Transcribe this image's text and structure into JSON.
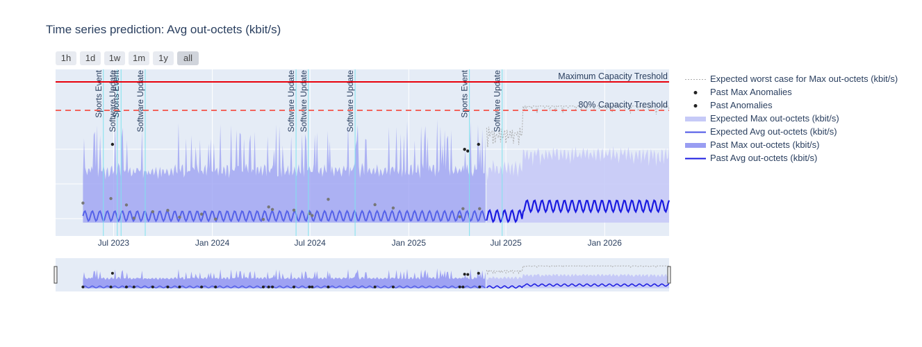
{
  "chart_data": {
    "type": "line",
    "title": "Time series prediction: Avg out-octets (kbit/s)",
    "x_range": [
      "2023-03-15",
      "2026-05-01"
    ],
    "past_end": "2025-05-25",
    "y_range_relative": [
      0,
      1
    ],
    "x_ticks": [
      "Jul 2023",
      "Jan 2024",
      "Jul 2024",
      "Jan 2025",
      "Jul 2025",
      "Jan 2026"
    ],
    "thresholds": [
      {
        "label": "Maximum Capacity Treshold",
        "style": "solid",
        "color": "#e8000b"
      },
      {
        "label": "80% Capacity Treshold",
        "style": "dashed",
        "color": "#f2645c"
      }
    ],
    "events": [
      {
        "date": "2023-06-12",
        "label": "Sports Event"
      },
      {
        "date": "2023-07-08",
        "label": "Software Update"
      },
      {
        "date": "2023-07-15",
        "label": "Sports Event"
      },
      {
        "date": "2023-08-29",
        "label": "Software Update"
      },
      {
        "date": "2024-06-05",
        "label": "Software Update"
      },
      {
        "date": "2024-06-28",
        "label": "Software Update"
      },
      {
        "date": "2024-09-23",
        "label": "Software Update"
      },
      {
        "date": "2025-04-24",
        "label": "Sports Event"
      },
      {
        "date": "2025-06-24",
        "label": "Software Update"
      }
    ],
    "series": [
      {
        "name": "Expected worst case for Max out-octets (kbit/s)",
        "style": "dotted",
        "color": "#aaaaaa"
      },
      {
        "name": "Past Max Anomalies",
        "style": "markers",
        "color": "#222222"
      },
      {
        "name": "Past Anomalies",
        "style": "markers",
        "color": "#222222"
      },
      {
        "name": "Expected Max out-octets (kbit/s)",
        "style": "area",
        "color": "#c6caf7"
      },
      {
        "name": "Expected Avg out-octets (kbit/s)",
        "style": "line",
        "color": "#4a53e6"
      },
      {
        "name": "Past Max out-octets (kbit/s)",
        "style": "area",
        "color": "#999df2"
      },
      {
        "name": "Past Avg out-octets (kbit/s)",
        "style": "line",
        "color": "#1a1ae0"
      }
    ],
    "max_anomalies": [
      "2023-06-29",
      "2025-04-15",
      "2025-04-21",
      "2025-05-11"
    ],
    "anomalies": [
      "2023-05-05",
      "2023-06-26",
      "2023-07-25",
      "2023-08-08",
      "2023-09-12",
      "2023-10-10",
      "2023-11-01",
      "2023-12-12",
      "2024-01-07",
      "2024-04-05",
      "2024-04-15",
      "2024-04-22",
      "2024-06-01",
      "2024-06-30",
      "2024-07-05",
      "2024-08-04",
      "2024-10-30",
      "2024-12-03",
      "2025-04-06",
      "2025-04-12",
      "2025-05-13"
    ]
  },
  "rangeselector": [
    "1h",
    "1d",
    "1w",
    "1m",
    "1y",
    "all"
  ],
  "rangeselector_active": "all"
}
